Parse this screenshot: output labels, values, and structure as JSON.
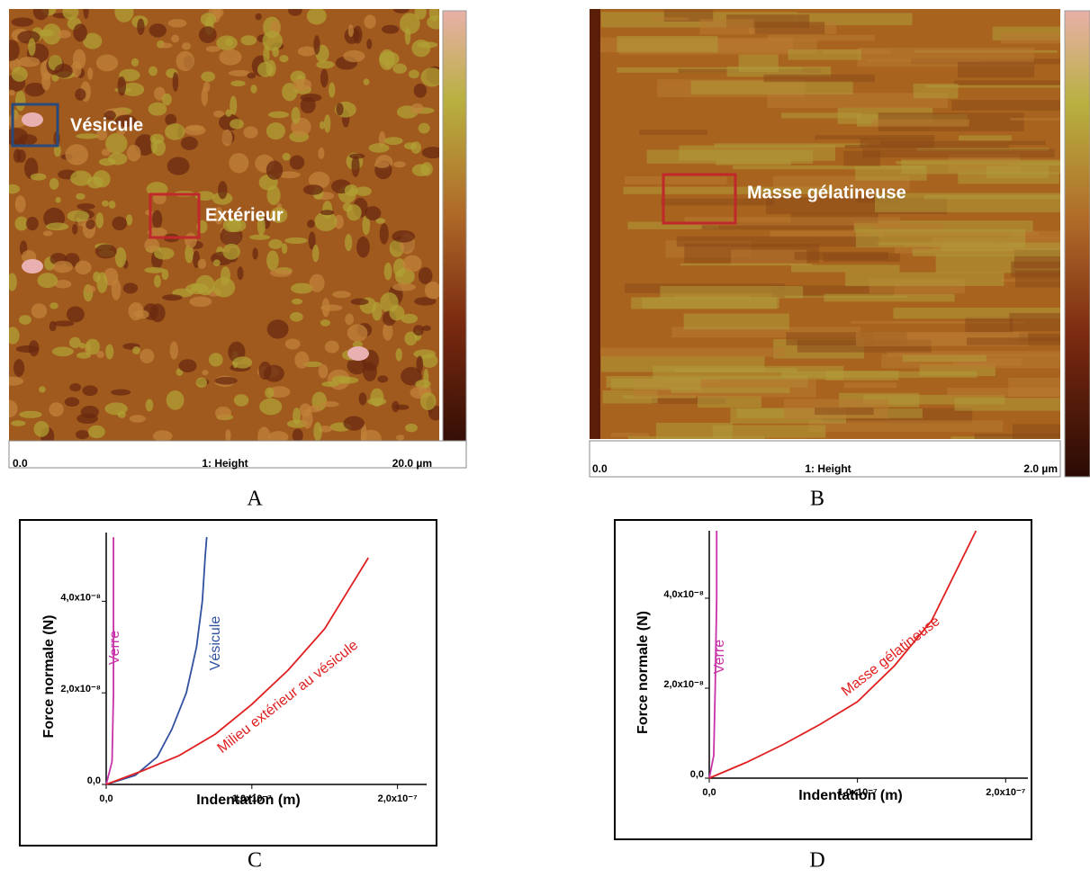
{
  "images": [
    {
      "panel": "A",
      "labels": [
        "Vésicule",
        "Extérieur"
      ],
      "axis_start": "0.0",
      "axis_title": "1: Height",
      "axis_end": "20.0 µm"
    },
    {
      "panel": "B",
      "labels": [
        "Masse gélatineuse"
      ],
      "axis_start": "0.0",
      "axis_title": "1: Height",
      "axis_end": "2.0 µm"
    }
  ],
  "chart_data": [
    {
      "type": "line",
      "panel": "C",
      "x_label": "Indentation (m)",
      "y_label": "Force normale (N)",
      "xlim": [
        0,
        2.2e-07
      ],
      "ylim": [
        0,
        5.5e-08
      ],
      "xticks": [
        {
          "value": 0,
          "label": "0,0"
        },
        {
          "value": 1e-07,
          "label": "1,0x10⁻⁷"
        },
        {
          "value": 2e-07,
          "label": "2,0x10⁻⁷"
        }
      ],
      "yticks": [
        {
          "value": 0,
          "label": "0,0"
        },
        {
          "value": 2e-08,
          "label": "2,0x10⁻⁸"
        },
        {
          "value": 4e-08,
          "label": "4,0x10⁻⁸"
        }
      ],
      "series": [
        {
          "name": "Verre",
          "color": "#c832a8",
          "x": [
            0,
            4e-09,
            5e-09,
            5e-09,
            5e-09
          ],
          "values": [
            0,
            5e-09,
            2e-08,
            4e-08,
            5.4e-08
          ]
        },
        {
          "name": "Vésicule",
          "color": "#3050a0",
          "x": [
            0,
            2e-08,
            3.5e-08,
            4.5e-08,
            5.5e-08,
            6.2e-08,
            6.6e-08,
            6.8e-08,
            6.9e-08
          ],
          "values": [
            0,
            2e-09,
            6e-09,
            1.2e-08,
            2e-08,
            3e-08,
            4e-08,
            5e-08,
            5.4e-08
          ]
        },
        {
          "name": "Milieu extérieur au vésicule",
          "color": "#e02020",
          "x": [
            0,
            2.5e-08,
            5e-08,
            7.5e-08,
            1e-07,
            1.25e-07,
            1.5e-07,
            1.8e-07
          ],
          "values": [
            0,
            3e-09,
            6.3e-09,
            1.1e-08,
            1.75e-08,
            2.5e-08,
            3.4e-08,
            4.95e-08
          ]
        }
      ]
    },
    {
      "type": "line",
      "panel": "D",
      "x_label": "Indentation (m)",
      "y_label": "Force normale (N)",
      "xlim": [
        0,
        2.15e-07
      ],
      "ylim": [
        0,
        5.5e-08
      ],
      "xticks": [
        {
          "value": 0,
          "label": "0,0"
        },
        {
          "value": 1e-07,
          "label": "1,0x10⁻⁷"
        },
        {
          "value": 2e-07,
          "label": "2,0x10⁻⁷"
        }
      ],
      "yticks": [
        {
          "value": 0,
          "label": "0,0"
        },
        {
          "value": 2e-08,
          "label": "2,0x10⁻⁸"
        },
        {
          "value": 4e-08,
          "label": "4,0x10⁻⁸"
        }
      ],
      "series": [
        {
          "name": "Verre",
          "color": "#c832a8",
          "x": [
            0,
            3e-09,
            4e-09,
            5e-09,
            5e-09
          ],
          "values": [
            0,
            5e-09,
            2e-08,
            4e-08,
            5.5e-08
          ]
        },
        {
          "name": "Masse gélatineuse",
          "color": "#e02020",
          "x": [
            0,
            2.5e-08,
            5e-08,
            7.5e-08,
            1e-07,
            1.25e-07,
            1.5e-07,
            1.8e-07
          ],
          "values": [
            0,
            3.5e-09,
            7.5e-09,
            1.2e-08,
            1.7e-08,
            2.5e-08,
            3.5e-08,
            5.5e-08
          ]
        }
      ]
    }
  ]
}
